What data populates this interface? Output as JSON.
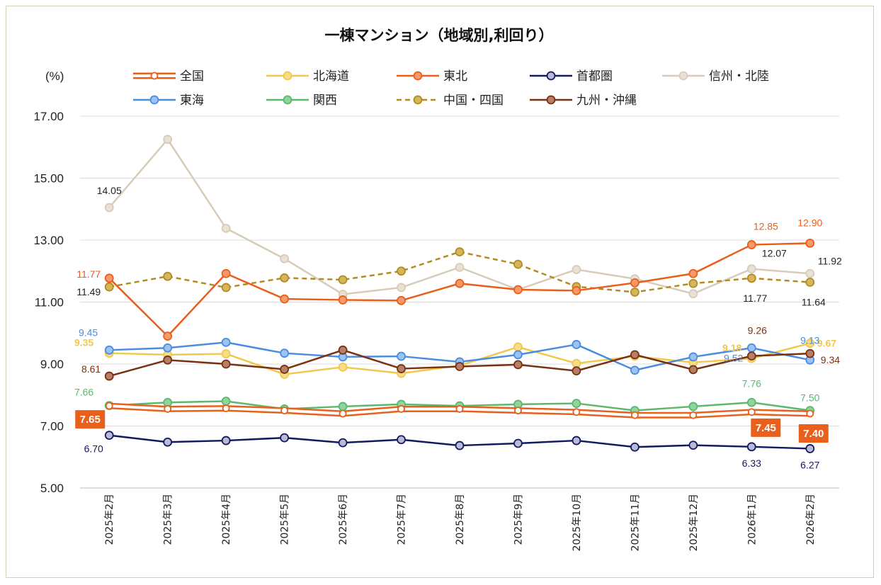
{
  "chart_data": {
    "type": "line",
    "title": "一棟マンション（地域別,利回り）",
    "ylabel": "(%)",
    "ylim": [
      5,
      17
    ],
    "yticks": [
      "5.00",
      "7.00",
      "9.00",
      "11.00",
      "13.00",
      "15.00",
      "17.00"
    ],
    "grid": true,
    "legend_position": "top",
    "categories": [
      "2025年2月",
      "2025年3月",
      "2025年4月",
      "2025年5月",
      "2025年6月",
      "2025年7月",
      "2025年8月",
      "2025年9月",
      "2025年10月",
      "2025年11月",
      "2025年12月",
      "2026年1月",
      "2026年2月"
    ],
    "series": [
      {
        "name": "全国",
        "color": "#e8601c",
        "style": "double",
        "marker_fill": "#ffffff",
        "values": [
          7.65,
          7.55,
          7.57,
          7.5,
          7.4,
          7.55,
          7.55,
          7.5,
          7.45,
          7.35,
          7.35,
          7.45,
          7.4
        ]
      },
      {
        "name": "北海道",
        "color": "#f2c84b",
        "style": "solid",
        "marker_fill": "#f7dc8c",
        "values": [
          9.35,
          9.3,
          9.33,
          8.67,
          8.9,
          8.7,
          8.95,
          9.55,
          9.02,
          9.25,
          9.05,
          9.18,
          9.67
        ]
      },
      {
        "name": "東北",
        "color": "#ea5e1a",
        "style": "solid",
        "marker_fill": "#f59a6b",
        "values": [
          11.77,
          9.9,
          11.92,
          11.1,
          11.07,
          11.05,
          11.6,
          11.4,
          11.37,
          11.62,
          11.92,
          12.85,
          12.9
        ]
      },
      {
        "name": "首都圏",
        "color": "#141a5e",
        "style": "solid",
        "marker_fill": "#b8bad8",
        "values": [
          6.7,
          6.48,
          6.53,
          6.62,
          6.46,
          6.56,
          6.37,
          6.44,
          6.53,
          6.32,
          6.38,
          6.33,
          6.27
        ]
      },
      {
        "name": "信州・北陸",
        "color": "#d8cbb8",
        "style": "solid",
        "marker_fill": "#e9e1d6",
        "values": [
          14.05,
          16.25,
          13.38,
          12.4,
          11.25,
          11.47,
          12.12,
          11.4,
          12.05,
          11.75,
          11.27,
          12.07,
          11.92
        ]
      },
      {
        "name": "東海",
        "color": "#4a8ce0",
        "style": "solid",
        "marker_fill": "#9cc2f0",
        "values": [
          9.45,
          9.52,
          9.7,
          9.35,
          9.23,
          9.25,
          9.07,
          9.3,
          9.63,
          8.8,
          9.23,
          9.52,
          9.13
        ]
      },
      {
        "name": "関西",
        "color": "#5cb86c",
        "style": "solid",
        "marker_fill": "#90d49c",
        "values": [
          7.66,
          7.76,
          7.8,
          7.55,
          7.63,
          7.7,
          7.65,
          7.7,
          7.73,
          7.5,
          7.63,
          7.76,
          7.5
        ]
      },
      {
        "name": "中国・四国",
        "color": "#b08c22",
        "style": "dashed",
        "marker_fill": "#d6b65a",
        "values": [
          11.49,
          11.83,
          11.47,
          11.78,
          11.72,
          12.0,
          12.62,
          12.22,
          11.5,
          11.32,
          11.6,
          11.77,
          11.64
        ]
      },
      {
        "name": "九州・沖縄",
        "color": "#7a3112",
        "style": "solid",
        "marker_fill": "#b58068",
        "values": [
          8.61,
          9.13,
          9.0,
          8.83,
          9.45,
          8.85,
          8.92,
          8.98,
          8.78,
          9.3,
          8.82,
          9.26,
          9.34
        ]
      }
    ],
    "labels": [
      {
        "series": 0,
        "index": 0,
        "text": "7.65",
        "boxed": true
      },
      {
        "series": 0,
        "index": 11,
        "text": "7.45",
        "boxed": true
      },
      {
        "series": 0,
        "index": 12,
        "text": "7.40",
        "boxed": true
      },
      {
        "series": 1,
        "index": 0,
        "text": "9.35",
        "bold": true
      },
      {
        "series": 1,
        "index": 11,
        "text": "9.18",
        "bold": true
      },
      {
        "series": 1,
        "index": 12,
        "text": "9.67",
        "bold": true
      },
      {
        "series": 2,
        "index": 0,
        "text": "11.77"
      },
      {
        "series": 2,
        "index": 11,
        "text": "12.85"
      },
      {
        "series": 2,
        "index": 12,
        "text": "12.90"
      },
      {
        "series": 3,
        "index": 0,
        "text": "6.70"
      },
      {
        "series": 3,
        "index": 11,
        "text": "6.33"
      },
      {
        "series": 3,
        "index": 12,
        "text": "6.27"
      },
      {
        "series": 4,
        "index": 0,
        "text": "14.05"
      },
      {
        "series": 4,
        "index": 11,
        "text": "12.07"
      },
      {
        "series": 4,
        "index": 12,
        "text": "11.92"
      },
      {
        "series": 5,
        "index": 0,
        "text": "9.45"
      },
      {
        "series": 5,
        "index": 11,
        "text": "9.52"
      },
      {
        "series": 5,
        "index": 12,
        "text": "9.13"
      },
      {
        "series": 6,
        "index": 0,
        "text": "7.66"
      },
      {
        "series": 6,
        "index": 11,
        "text": "7.76"
      },
      {
        "series": 6,
        "index": 12,
        "text": "7.50"
      },
      {
        "series": 7,
        "index": 0,
        "text": "11.49"
      },
      {
        "series": 7,
        "index": 11,
        "text": "11.77"
      },
      {
        "series": 7,
        "index": 12,
        "text": "11.64"
      },
      {
        "series": 8,
        "index": 0,
        "text": "8.61"
      },
      {
        "series": 8,
        "index": 11,
        "text": "9.26"
      },
      {
        "series": 8,
        "index": 12,
        "text": "9.34"
      }
    ]
  }
}
